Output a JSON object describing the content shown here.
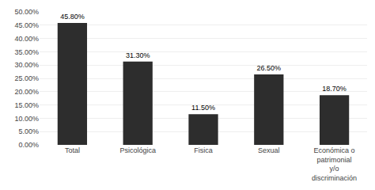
{
  "chart_data": {
    "type": "bar",
    "categories": [
      "Total",
      "Psicológica",
      "Fisica",
      "Sexual",
      "Económica o\npatrimonial\ny/o\ndiscriminación"
    ],
    "values": [
      45.8,
      31.3,
      11.5,
      26.5,
      18.7
    ],
    "value_labels": [
      "45.80%",
      "31.30%",
      "11.50%",
      "26.50%",
      "18.70%"
    ],
    "data_labels": true,
    "color": "#2d2d2d",
    "ylim": [
      0,
      50
    ],
    "yticks": [
      {
        "value": 0,
        "label": "0.00%"
      },
      {
        "value": 5,
        "label": "5.00%"
      },
      {
        "value": 10,
        "label": "10.00%"
      },
      {
        "value": 15,
        "label": "15.00%"
      },
      {
        "value": 20,
        "label": "20.00%"
      },
      {
        "value": 25,
        "label": "25.00%"
      },
      {
        "value": 30,
        "label": "30.00%"
      },
      {
        "value": 35,
        "label": "35.00%"
      },
      {
        "value": 40,
        "label": "40.00%"
      },
      {
        "value": 45,
        "label": "45.00%"
      },
      {
        "value": 50,
        "label": "50.00%"
      }
    ],
    "grid": true
  }
}
